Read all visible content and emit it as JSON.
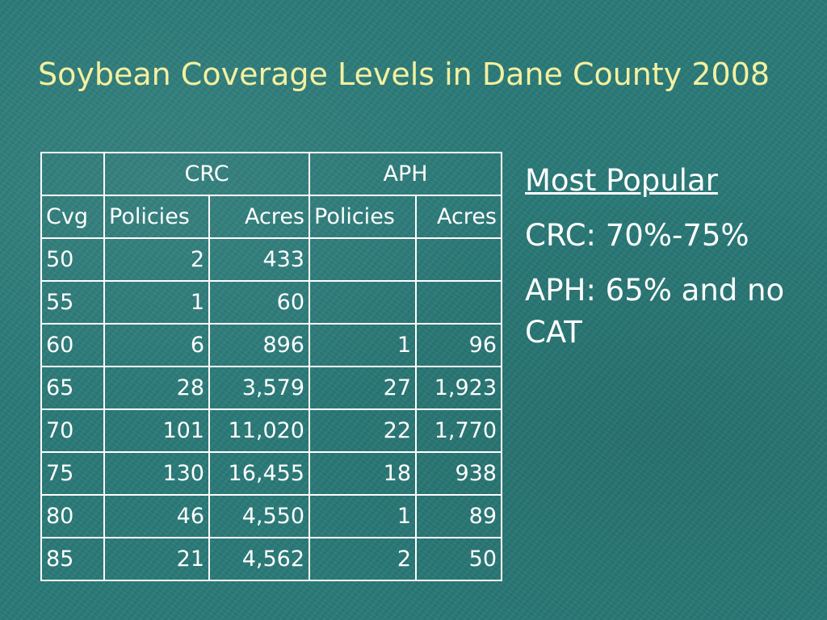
{
  "slide": {
    "title": "Soybean Coverage Levels in Dane County 2008",
    "colors": {
      "background": "#2a7a78",
      "title": "#f4f0a0",
      "text": "#ffffff"
    }
  },
  "table": {
    "group_headers": [
      "",
      "CRC",
      "APH"
    ],
    "column_headers": [
      "Cvg",
      "Policies",
      "Acres",
      "Policies",
      "Acres"
    ],
    "rows": [
      [
        "50",
        "2",
        "433",
        "",
        ""
      ],
      [
        "55",
        "1",
        "60",
        "",
        ""
      ],
      [
        "60",
        "6",
        "896",
        "1",
        "96"
      ],
      [
        "65",
        "28",
        "3,579",
        "27",
        "1,923"
      ],
      [
        "70",
        "101",
        "11,020",
        "22",
        "1,770"
      ],
      [
        "75",
        "130",
        "16,455",
        "18",
        "938"
      ],
      [
        "80",
        "46",
        "4,550",
        "1",
        "89"
      ],
      [
        "85",
        "21",
        "4,562",
        "2",
        "50"
      ]
    ]
  },
  "notes": {
    "heading": "Most Popular",
    "crc_line": "CRC: 70%-75%",
    "aph_line": "APH: 65% and no CAT"
  }
}
